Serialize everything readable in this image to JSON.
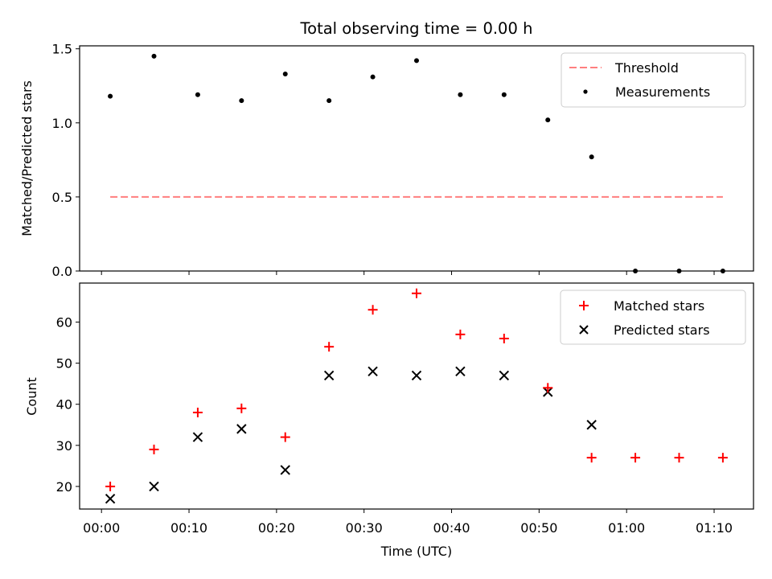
{
  "chart_data": [
    {
      "type": "scatter",
      "title": "Total observing time = 0.00 h",
      "xlabel": "",
      "ylabel": "Matched/Predicted stars",
      "ylim": [
        0,
        1.52
      ],
      "yticks": [
        "0.0",
        "0.5",
        "1.0",
        "1.5"
      ],
      "x_minutes": [
        1,
        6,
        11,
        16,
        21,
        26,
        31,
        36,
        41,
        46,
        51,
        56,
        61,
        66,
        71
      ],
      "series": [
        {
          "name": "Measurements",
          "kind": "points",
          "color": "#000000",
          "values": [
            1.18,
            1.45,
            1.19,
            1.15,
            1.33,
            1.15,
            1.31,
            1.42,
            1.19,
            1.19,
            1.02,
            0.77,
            0.0,
            0.0,
            0.0
          ]
        },
        {
          "name": "Threshold",
          "kind": "dashed-line",
          "color": "#ff7f7f",
          "x_minutes": [
            1,
            71
          ],
          "values": [
            0.5,
            0.5
          ]
        }
      ],
      "legend": "top-right"
    },
    {
      "type": "scatter",
      "title": "",
      "xlabel": "Time (UTC)",
      "ylabel": "Count",
      "ylim": [
        14.5,
        69.5
      ],
      "yticks": [
        "20",
        "30",
        "40",
        "50",
        "60"
      ],
      "xlim_minutes": [
        -2.5,
        74.5
      ],
      "xticks": [
        "00:00",
        "00:10",
        "00:20",
        "00:30",
        "00:40",
        "00:50",
        "01:00",
        "01:10"
      ],
      "x_minutes": [
        1,
        6,
        11,
        16,
        21,
        26,
        31,
        36,
        41,
        46,
        51,
        56,
        61,
        66,
        71
      ],
      "series": [
        {
          "name": "Matched stars",
          "marker": "plus",
          "color": "#ff0000",
          "values": [
            20,
            29,
            38,
            39,
            32,
            54,
            63,
            67,
            57,
            56,
            44,
            27,
            27,
            27,
            27
          ]
        },
        {
          "name": "Predicted stars",
          "marker": "x",
          "color": "#000000",
          "values": [
            17,
            20,
            32,
            34,
            24,
            47,
            48,
            47,
            48,
            47,
            43,
            35,
            null,
            null,
            null
          ]
        }
      ],
      "legend": "top-right"
    }
  ]
}
